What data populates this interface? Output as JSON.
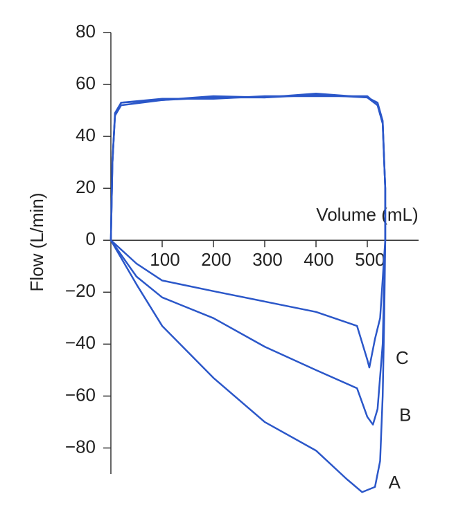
{
  "chart_data": {
    "type": "line",
    "x_label": "Volume (mL)",
    "y_label": "Flow (L/min)",
    "xlim": [
      0,
      600
    ],
    "ylim": [
      -90,
      80
    ],
    "xticks": [
      100,
      200,
      300,
      400,
      500
    ],
    "yticks": [
      {
        "value": -80,
        "label": "−80"
      },
      {
        "value": -60,
        "label": "−60"
      },
      {
        "value": -40,
        "label": "−40"
      },
      {
        "value": -20,
        "label": "−20"
      },
      0,
      20,
      40,
      60,
      80
    ],
    "series": [
      {
        "name": "A",
        "color": "#2b57c9",
        "x": [
          0,
          3,
          8,
          20,
          100,
          200,
          300,
          400,
          500,
          520,
          530,
          535,
          535,
          533,
          530,
          525,
          515,
          490,
          460,
          400,
          300,
          200,
          100,
          50,
          0
        ],
        "values": [
          0,
          30,
          48,
          52,
          54,
          55,
          55,
          56,
          55,
          52,
          45,
          20,
          0,
          -30,
          -60,
          -85,
          -95,
          -97,
          -92,
          -81,
          -70,
          -53,
          -33,
          -17,
          0
        ]
      },
      {
        "name": "B",
        "color": "#2b57c9",
        "x": [
          0,
          3,
          8,
          20,
          100,
          200,
          300,
          400,
          500,
          520,
          530,
          535,
          535,
          530,
          520,
          511,
          500,
          480,
          400,
          300,
          200,
          100,
          50,
          0
        ],
        "values": [
          0,
          30,
          48,
          53,
          54,
          55.5,
          55,
          56.5,
          55,
          53,
          46,
          20,
          0,
          -40,
          -65,
          -71,
          -68,
          -57,
          -50,
          -41,
          -30,
          -22,
          -14,
          0
        ]
      },
      {
        "name": "C",
        "color": "#2b57c9",
        "x": [
          0,
          3,
          8,
          20,
          100,
          200,
          300,
          400,
          500,
          520,
          530,
          535,
          535,
          525,
          515,
          504,
          500,
          480,
          400,
          300,
          200,
          100,
          50,
          0
        ],
        "values": [
          0,
          30,
          49,
          53,
          54.5,
          54.5,
          55.5,
          55.5,
          55.5,
          52,
          45,
          20,
          0,
          -30,
          -38,
          -49,
          -46,
          -33,
          -27.6,
          -23.6,
          -19.6,
          -15.5,
          -9,
          0
        ]
      }
    ]
  }
}
